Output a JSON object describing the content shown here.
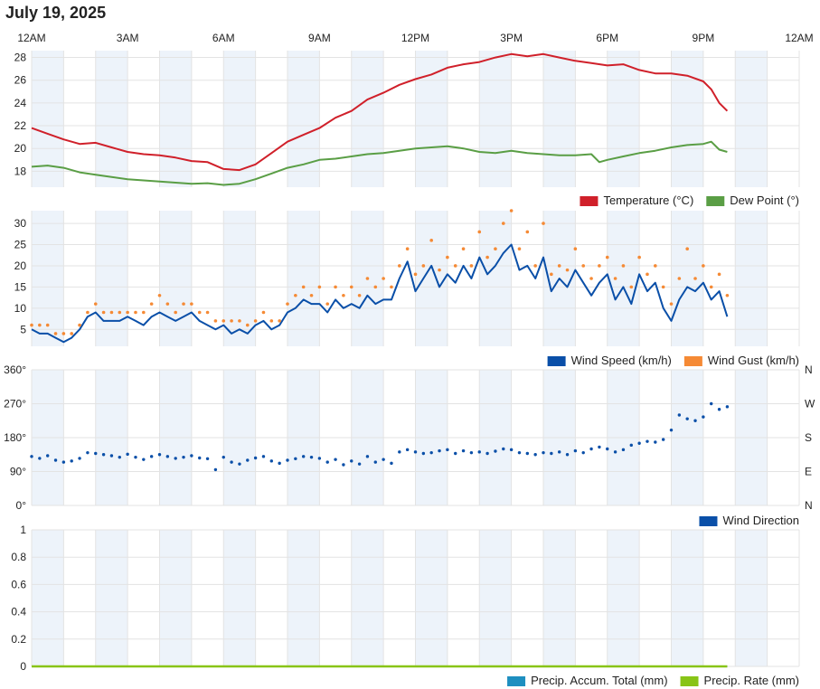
{
  "page": {
    "title": "July 19, 2025"
  },
  "x_ticks": [
    "12AM",
    "3AM",
    "6AM",
    "9AM",
    "12PM",
    "3PM",
    "6PM",
    "9PM",
    "12AM"
  ],
  "colors": {
    "temperature": "#d0202a",
    "dew_point": "#5a9e45",
    "wind_speed": "#0a4fa8",
    "wind_gust": "#f58a35",
    "wind_direction": "#0a4fa8",
    "precip_total": "#1e8fc0",
    "precip_rate": "#88c417",
    "band": "#edf3fa",
    "grid": "#e3e3e3"
  },
  "chart_data": [
    {
      "type": "line",
      "x_unit": "hours",
      "xlim": [
        0,
        24
      ],
      "ylim": [
        16.6,
        28.6
      ],
      "yticks": [
        18,
        20,
        22,
        24,
        26,
        28
      ],
      "ytick_labels": [
        "18",
        "20",
        "22",
        "24",
        "26",
        "28"
      ],
      "series": [
        {
          "name": "Temperature (°C)",
          "key": "temperature",
          "x": [
            0,
            0.5,
            1,
            1.5,
            2,
            2.5,
            3,
            3.5,
            4,
            4.5,
            5,
            5.5,
            6,
            6.5,
            7,
            7.5,
            8,
            8.5,
            9,
            9.5,
            10,
            10.5,
            11,
            11.5,
            12,
            12.5,
            13,
            13.5,
            14,
            14.5,
            15,
            15.5,
            16,
            16.5,
            17,
            17.5,
            18,
            18.5,
            19,
            19.5,
            20,
            20.5,
            21,
            21.25,
            21.5,
            21.75
          ],
          "y": [
            21.8,
            21.3,
            20.8,
            20.4,
            20.5,
            20.1,
            19.7,
            19.5,
            19.4,
            19.2,
            18.9,
            18.8,
            18.2,
            18.1,
            18.6,
            19.6,
            20.6,
            21.2,
            21.8,
            22.7,
            23.3,
            24.3,
            24.9,
            25.6,
            26.1,
            26.5,
            27.1,
            27.4,
            27.6,
            28.0,
            28.3,
            28.1,
            28.3,
            28.0,
            27.7,
            27.5,
            27.3,
            27.4,
            26.9,
            26.6,
            26.6,
            26.4,
            25.9,
            25.2,
            24.0,
            23.3
          ]
        },
        {
          "name": "Dew Point (°)",
          "key": "dew_point",
          "x": [
            0,
            0.5,
            1,
            1.5,
            2,
            2.5,
            3,
            3.5,
            4,
            4.5,
            5,
            5.5,
            6,
            6.5,
            7,
            7.5,
            8,
            8.5,
            9,
            9.5,
            10,
            10.5,
            11,
            11.5,
            12,
            12.5,
            13,
            13.5,
            14,
            14.5,
            15,
            15.5,
            16,
            16.5,
            17,
            17.5,
            17.75,
            18,
            18.5,
            19,
            19.5,
            20,
            20.5,
            21,
            21.25,
            21.5,
            21.75
          ],
          "y": [
            18.4,
            18.5,
            18.3,
            17.9,
            17.7,
            17.5,
            17.3,
            17.2,
            17.1,
            17.0,
            16.9,
            16.95,
            16.8,
            16.9,
            17.3,
            17.8,
            18.3,
            18.6,
            19.0,
            19.1,
            19.3,
            19.5,
            19.6,
            19.8,
            20.0,
            20.1,
            20.2,
            20.0,
            19.7,
            19.6,
            19.8,
            19.6,
            19.5,
            19.4,
            19.4,
            19.5,
            18.8,
            19.0,
            19.3,
            19.6,
            19.8,
            20.1,
            20.3,
            20.4,
            20.6,
            19.9,
            19.7
          ]
        }
      ]
    },
    {
      "type": "line",
      "x_unit": "hours",
      "xlim": [
        0,
        24
      ],
      "ylim": [
        1,
        33
      ],
      "yticks": [
        5,
        10,
        15,
        20,
        25,
        30
      ],
      "ytick_labels": [
        "5",
        "10",
        "15",
        "20",
        "25",
        "30"
      ],
      "series": [
        {
          "name": "Wind Speed (km/h)",
          "key": "wind_speed",
          "x": [
            0,
            0.25,
            0.5,
            0.75,
            1,
            1.25,
            1.5,
            1.75,
            2,
            2.25,
            2.5,
            2.75,
            3,
            3.25,
            3.5,
            3.75,
            4,
            4.25,
            4.5,
            4.75,
            5,
            5.25,
            5.5,
            5.75,
            6,
            6.25,
            6.5,
            6.75,
            7,
            7.25,
            7.5,
            7.75,
            8,
            8.25,
            8.5,
            8.75,
            9,
            9.25,
            9.5,
            9.75,
            10,
            10.25,
            10.5,
            10.75,
            11,
            11.25,
            11.5,
            11.75,
            12,
            12.25,
            12.5,
            12.75,
            13,
            13.25,
            13.5,
            13.75,
            14,
            14.25,
            14.5,
            14.75,
            15,
            15.25,
            15.5,
            15.75,
            16,
            16.25,
            16.5,
            16.75,
            17,
            17.25,
            17.5,
            17.75,
            18,
            18.25,
            18.5,
            18.75,
            19,
            19.25,
            19.5,
            19.75,
            20,
            20.25,
            20.5,
            20.75,
            21,
            21.25,
            21.5,
            21.75
          ],
          "y": [
            5,
            4,
            4,
            3,
            2,
            3,
            5,
            8,
            9,
            7,
            7,
            7,
            8,
            7,
            6,
            8,
            9,
            8,
            7,
            8,
            9,
            7,
            6,
            5,
            6,
            4,
            5,
            4,
            6,
            7,
            5,
            6,
            9,
            10,
            12,
            11,
            11,
            9,
            12,
            10,
            11,
            10,
            13,
            11,
            12,
            12,
            17,
            21,
            14,
            17,
            20,
            15,
            18,
            16,
            20,
            17,
            22,
            18,
            20,
            23,
            25,
            19,
            20,
            17,
            22,
            14,
            17,
            15,
            19,
            16,
            13,
            16,
            18,
            12,
            15,
            11,
            18,
            14,
            16,
            10,
            7,
            12,
            15,
            14,
            16,
            12,
            14,
            8
          ]
        },
        {
          "name": "Wind Gust (km/h)",
          "key": "wind_gust",
          "x": [
            0,
            0.25,
            0.5,
            0.75,
            1,
            1.25,
            1.5,
            1.75,
            2,
            2.25,
            2.5,
            2.75,
            3,
            3.25,
            3.5,
            3.75,
            4,
            4.25,
            4.5,
            4.75,
            5,
            5.25,
            5.5,
            5.75,
            6,
            6.25,
            6.5,
            6.75,
            7,
            7.25,
            7.5,
            7.75,
            8,
            8.25,
            8.5,
            8.75,
            9,
            9.25,
            9.5,
            9.75,
            10,
            10.25,
            10.5,
            10.75,
            11,
            11.25,
            11.5,
            11.75,
            12,
            12.25,
            12.5,
            12.75,
            13,
            13.25,
            13.5,
            13.75,
            14,
            14.25,
            14.5,
            14.75,
            15,
            15.25,
            15.5,
            15.75,
            16,
            16.25,
            16.5,
            16.75,
            17,
            17.25,
            17.5,
            17.75,
            18,
            18.25,
            18.5,
            18.75,
            19,
            19.25,
            19.5,
            19.75,
            20,
            20.25,
            20.5,
            20.75,
            21,
            21.25,
            21.5,
            21.75
          ],
          "y": [
            6,
            6,
            6,
            4,
            4,
            4,
            6,
            9,
            11,
            9,
            9,
            9,
            9,
            9,
            9,
            11,
            13,
            11,
            9,
            11,
            11,
            9,
            9,
            7,
            7,
            7,
            7,
            6,
            7,
            9,
            7,
            7,
            11,
            13,
            15,
            13,
            15,
            11,
            15,
            13,
            15,
            13,
            17,
            15,
            17,
            15,
            20,
            24,
            18,
            20,
            26,
            19,
            22,
            20,
            24,
            20,
            28,
            22,
            24,
            30,
            33,
            24,
            28,
            20,
            30,
            18,
            20,
            19,
            24,
            20,
            17,
            20,
            22,
            17,
            20,
            15,
            22,
            18,
            20,
            15,
            11,
            17,
            24,
            17,
            20,
            15,
            18,
            13
          ]
        }
      ]
    },
    {
      "type": "scatter",
      "x_unit": "hours",
      "xlim": [
        0,
        24
      ],
      "ylim": [
        0,
        360
      ],
      "yticks": [
        0,
        90,
        180,
        270,
        360
      ],
      "ytick_labels": [
        "0°",
        "90°",
        "180°",
        "270°",
        "360°"
      ],
      "right_tick_labels": [
        "N",
        "E",
        "S",
        "W",
        "N"
      ],
      "series": [
        {
          "name": "Wind Direction",
          "key": "wind_direction",
          "x": [
            0,
            0.25,
            0.5,
            0.75,
            1,
            1.25,
            1.5,
            1.75,
            2,
            2.25,
            2.5,
            2.75,
            3,
            3.25,
            3.5,
            3.75,
            4,
            4.25,
            4.5,
            4.75,
            5,
            5.25,
            5.5,
            5.75,
            6,
            6.25,
            6.5,
            6.75,
            7,
            7.25,
            7.5,
            7.75,
            8,
            8.25,
            8.5,
            8.75,
            9,
            9.25,
            9.5,
            9.75,
            10,
            10.25,
            10.5,
            10.75,
            11,
            11.25,
            11.5,
            11.75,
            12,
            12.25,
            12.5,
            12.75,
            13,
            13.25,
            13.5,
            13.75,
            14,
            14.25,
            14.5,
            14.75,
            15,
            15.25,
            15.5,
            15.75,
            16,
            16.25,
            16.5,
            16.75,
            17,
            17.25,
            17.5,
            17.75,
            18,
            18.25,
            18.5,
            18.75,
            19,
            19.25,
            19.5,
            19.75,
            20,
            20.25,
            20.5,
            20.75,
            21,
            21.25,
            21.5,
            21.75
          ],
          "y": [
            130,
            125,
            132,
            120,
            115,
            118,
            125,
            140,
            138,
            135,
            132,
            128,
            136,
            128,
            122,
            130,
            135,
            130,
            125,
            128,
            132,
            126,
            124,
            95,
            128,
            115,
            110,
            120,
            126,
            130,
            118,
            112,
            120,
            124,
            130,
            128,
            125,
            115,
            122,
            108,
            118,
            110,
            130,
            115,
            122,
            112,
            142,
            148,
            142,
            138,
            140,
            145,
            148,
            138,
            145,
            140,
            142,
            138,
            144,
            150,
            148,
            140,
            138,
            135,
            140,
            138,
            142,
            135,
            145,
            140,
            150,
            155,
            150,
            142,
            148,
            160,
            165,
            170,
            168,
            175,
            200,
            240,
            230,
            225,
            235,
            270,
            255,
            262
          ]
        }
      ]
    },
    {
      "type": "line",
      "x_unit": "hours",
      "xlim": [
        0,
        24
      ],
      "ylim": [
        0,
        1
      ],
      "yticks": [
        0,
        0.2,
        0.4,
        0.6,
        0.8,
        1
      ],
      "ytick_labels": [
        "0",
        "0.2",
        "0.4",
        "0.6",
        "0.8",
        "1"
      ],
      "series": [
        {
          "name": "Precip. Accum. Total (mm)",
          "key": "precip_total",
          "x": [
            0,
            21.75
          ],
          "y": [
            0,
            0
          ]
        },
        {
          "name": "Precip. Rate (mm)",
          "key": "precip_rate",
          "x": [
            0,
            21.75
          ],
          "y": [
            0,
            0
          ]
        }
      ]
    }
  ]
}
